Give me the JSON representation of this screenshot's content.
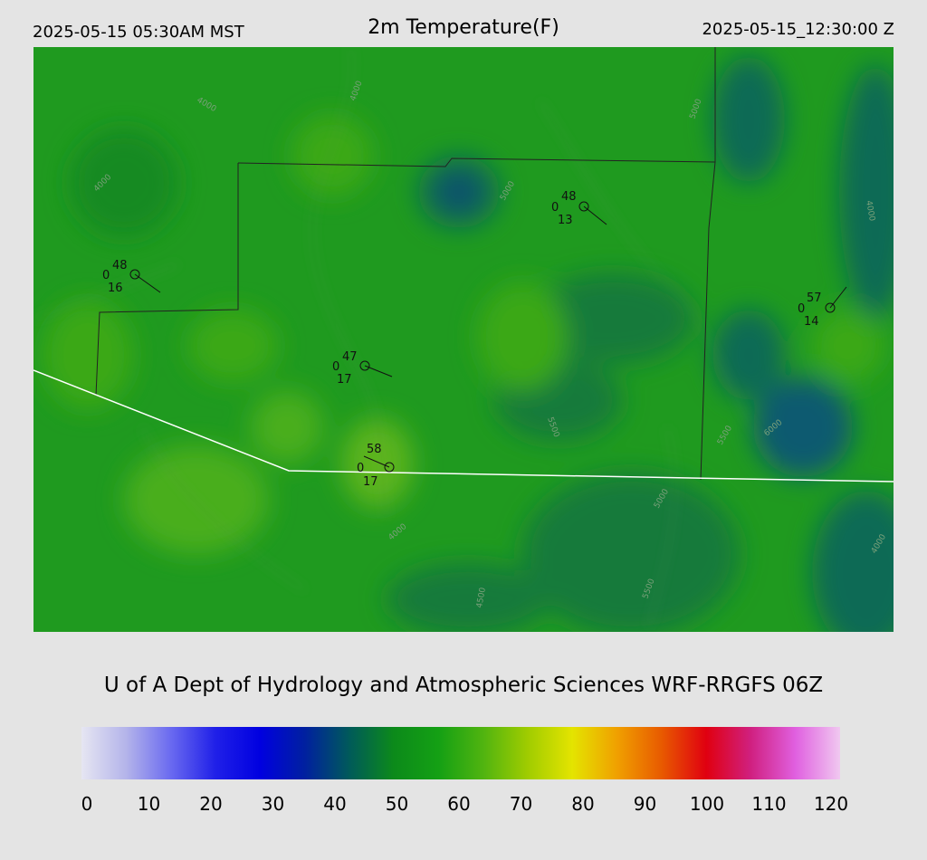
{
  "header": {
    "local_time": "2025-05-15 05:30AM MST",
    "title": "2m Temperature(F)",
    "utc_time": "2025-05-15_12:30:00 Z"
  },
  "credit": "U of A Dept of Hydrology and Atmospheric Sciences WRF-RRGFS 06Z",
  "colorbar": {
    "ticks": [
      "0",
      "10",
      "20",
      "30",
      "40",
      "50",
      "60",
      "70",
      "80",
      "90",
      "100",
      "110",
      "120"
    ],
    "stops": [
      "#e6e6f2",
      "#b4b4ea",
      "#6a6af0",
      "#2020e8",
      "#0000e0",
      "#0020a0",
      "#005a5a",
      "#0c8a1a",
      "#14a014",
      "#50b410",
      "#a0cc00",
      "#e4e400",
      "#f0a000",
      "#e85a00",
      "#e00010",
      "#d02080",
      "#e060e0",
      "#f0c8f0"
    ]
  },
  "map": {
    "field_colors": {
      "base": "#1f9a1f",
      "cold": "#0a6a55",
      "cool": "#127a3a",
      "warm": "#5cb41c",
      "state_line": "#ffffff",
      "county_line": "#222222"
    },
    "contour_labels": [
      "4000",
      "4500",
      "5000",
      "5500",
      "6000"
    ],
    "stations": [
      {
        "temp": "48",
        "left": "0",
        "right": "16"
      },
      {
        "temp": "48",
        "left": "0",
        "right": "13"
      },
      {
        "temp": "57",
        "left": "0",
        "right": "14"
      },
      {
        "temp": "47",
        "left": "0",
        "right": "17"
      },
      {
        "temp": "58",
        "left": "0",
        "right": "17"
      }
    ]
  }
}
